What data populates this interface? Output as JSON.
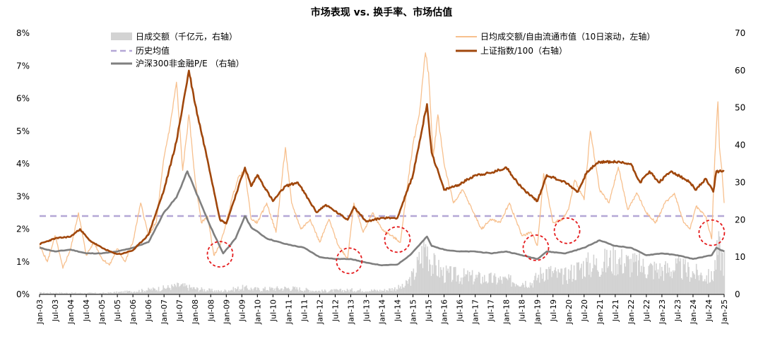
{
  "chart_data": {
    "type": "line",
    "title": "市场表现 vs. 换手率、市场估值",
    "left_axis": {
      "ticks": [
        "0%",
        "1%",
        "2%",
        "3%",
        "4%",
        "5%",
        "6%",
        "7%",
        "8%"
      ],
      "ylim": [
        0,
        8
      ]
    },
    "right_axis": {
      "ticks": [
        "0",
        "10",
        "20",
        "30",
        "40",
        "50",
        "60",
        "70"
      ],
      "ylim": [
        0,
        70
      ]
    },
    "x_ticks": [
      "Jan-03",
      "Jul-03",
      "Jan-04",
      "Jul-04",
      "Jan-05",
      "Jul-05",
      "Jan-06",
      "Jul-06",
      "Jan-07",
      "Jul-07",
      "Jan-08",
      "Jul-08",
      "Jan-09",
      "Jul-09",
      "Jan-10",
      "Jul-10",
      "Jan-11",
      "Jul-11",
      "Jan-12",
      "Jul-12",
      "Jan-13",
      "Jul-13",
      "Jan-14",
      "Jul-14",
      "Jan-15",
      "Jul-15",
      "Jan-16",
      "Jul-16",
      "Jan-17",
      "Jul-17",
      "Jan-18",
      "Jul-18",
      "Jan-19",
      "Jul-19",
      "Jan-20",
      "Jul-20",
      "Jan-21",
      "Jul-21",
      "Jan-22",
      "Jul-22",
      "Jan-23",
      "Jul-23",
      "Jan-24",
      "Jul-24",
      "Jan-25"
    ],
    "x_range": [
      2003.0,
      2025.0
    ],
    "legend": {
      "volume": "日成交额（千亿元，右轴）",
      "hist_avg": "历史均值",
      "pe": "沪深300非金融P/E （右轴）",
      "turnover": "日均成交额/自由流通市值（10日滚动，左轴）",
      "index": "上证指数/100（右轴）"
    },
    "colors": {
      "volume": "#d3d3d3",
      "hist_avg": "#b4a7d6",
      "pe": "#7f7f7f",
      "turnover": "#f7c08e",
      "index": "#a0470c",
      "circle": "#e41a1c"
    },
    "hist_avg_value": 2.4,
    "series": [
      {
        "key": "index",
        "name": "上证指数/100（右轴）",
        "axis": "right",
        "points": [
          [
            2003.0,
            13.5
          ],
          [
            2003.5,
            15.0
          ],
          [
            2004.0,
            15.5
          ],
          [
            2004.3,
            17.5
          ],
          [
            2004.6,
            14.5
          ],
          [
            2005.0,
            12.5
          ],
          [
            2005.4,
            11.0
          ],
          [
            2005.6,
            10.8
          ],
          [
            2006.0,
            11.8
          ],
          [
            2006.5,
            16.0
          ],
          [
            2007.0,
            28.0
          ],
          [
            2007.4,
            41.0
          ],
          [
            2007.8,
            60.0
          ],
          [
            2008.0,
            51.0
          ],
          [
            2008.4,
            36.0
          ],
          [
            2008.8,
            20.0
          ],
          [
            2009.0,
            19.0
          ],
          [
            2009.6,
            34.0
          ],
          [
            2009.8,
            29.0
          ],
          [
            2010.0,
            32.0
          ],
          [
            2010.5,
            25.0
          ],
          [
            2010.9,
            29.0
          ],
          [
            2011.3,
            30.0
          ],
          [
            2011.9,
            22.0
          ],
          [
            2012.2,
            24.0
          ],
          [
            2012.9,
            20.0
          ],
          [
            2013.1,
            23.5
          ],
          [
            2013.5,
            19.5
          ],
          [
            2014.0,
            20.5
          ],
          [
            2014.5,
            20.5
          ],
          [
            2015.0,
            32.0
          ],
          [
            2015.45,
            51.0
          ],
          [
            2015.6,
            38.0
          ],
          [
            2016.0,
            28.0
          ],
          [
            2016.5,
            29.5
          ],
          [
            2017.0,
            32.0
          ],
          [
            2017.5,
            32.5
          ],
          [
            2018.0,
            34.0
          ],
          [
            2018.5,
            28.5
          ],
          [
            2019.0,
            25.0
          ],
          [
            2019.3,
            32.0
          ],
          [
            2019.9,
            30.0
          ],
          [
            2020.3,
            27.5
          ],
          [
            2020.6,
            33.0
          ],
          [
            2021.0,
            35.5
          ],
          [
            2021.5,
            35.5
          ],
          [
            2022.0,
            35.0
          ],
          [
            2022.3,
            30.0
          ],
          [
            2022.6,
            33.0
          ],
          [
            2022.9,
            30.0
          ],
          [
            2023.3,
            33.0
          ],
          [
            2023.9,
            30.0
          ],
          [
            2024.1,
            28.0
          ],
          [
            2024.4,
            31.0
          ],
          [
            2024.65,
            27.5
          ],
          [
            2024.75,
            33.0
          ],
          [
            2025.0,
            33.0
          ]
        ]
      },
      {
        "key": "pe",
        "name": "沪深300非金融P/E （右轴）",
        "axis": "right",
        "points": [
          [
            2003.0,
            12.5
          ],
          [
            2003.5,
            11.5
          ],
          [
            2004.0,
            12.0
          ],
          [
            2004.5,
            11.0
          ],
          [
            2005.0,
            11.0
          ],
          [
            2005.5,
            11.5
          ],
          [
            2006.0,
            12.5
          ],
          [
            2006.5,
            14.0
          ],
          [
            2007.0,
            22.0
          ],
          [
            2007.4,
            26.0
          ],
          [
            2007.75,
            33.0
          ],
          [
            2008.0,
            28.0
          ],
          [
            2008.5,
            18.0
          ],
          [
            2008.9,
            11.0
          ],
          [
            2009.3,
            15.0
          ],
          [
            2009.6,
            21.0
          ],
          [
            2009.8,
            18.0
          ],
          [
            2010.3,
            15.0
          ],
          [
            2010.9,
            13.5
          ],
          [
            2011.5,
            12.5
          ],
          [
            2012.0,
            10.0
          ],
          [
            2012.5,
            9.5
          ],
          [
            2013.0,
            9.5
          ],
          [
            2013.5,
            8.5
          ],
          [
            2014.0,
            7.8
          ],
          [
            2014.5,
            8.0
          ],
          [
            2014.9,
            10.5
          ],
          [
            2015.45,
            15.5
          ],
          [
            2015.6,
            13.0
          ],
          [
            2016.0,
            12.0
          ],
          [
            2016.5,
            11.5
          ],
          [
            2017.0,
            11.5
          ],
          [
            2017.5,
            11.0
          ],
          [
            2018.0,
            11.5
          ],
          [
            2018.5,
            10.5
          ],
          [
            2019.0,
            9.5
          ],
          [
            2019.3,
            11.5
          ],
          [
            2019.9,
            11.0
          ],
          [
            2020.5,
            12.5
          ],
          [
            2021.0,
            14.5
          ],
          [
            2021.5,
            13.0
          ],
          [
            2022.0,
            12.5
          ],
          [
            2022.5,
            10.5
          ],
          [
            2023.0,
            11.0
          ],
          [
            2023.5,
            10.5
          ],
          [
            2024.0,
            9.5
          ],
          [
            2024.6,
            10.5
          ],
          [
            2024.75,
            12.5
          ],
          [
            2025.0,
            11.5
          ]
        ]
      },
      {
        "key": "turnover",
        "name": "日均成交额/自由流通市值（10日滚动，左轴）",
        "axis": "left",
        "points": [
          [
            2003.0,
            1.5
          ],
          [
            2003.25,
            1.0
          ],
          [
            2003.5,
            1.8
          ],
          [
            2003.75,
            0.8
          ],
          [
            2004.0,
            1.4
          ],
          [
            2004.25,
            2.5
          ],
          [
            2004.5,
            1.2
          ],
          [
            2004.75,
            1.6
          ],
          [
            2005.0,
            1.1
          ],
          [
            2005.25,
            0.9
          ],
          [
            2005.5,
            1.4
          ],
          [
            2005.75,
            1.0
          ],
          [
            2006.0,
            1.6
          ],
          [
            2006.25,
            2.8
          ],
          [
            2006.5,
            1.8
          ],
          [
            2006.75,
            2.2
          ],
          [
            2007.0,
            4.2
          ],
          [
            2007.2,
            5.2
          ],
          [
            2007.4,
            6.5
          ],
          [
            2007.6,
            3.8
          ],
          [
            2007.8,
            5.5
          ],
          [
            2008.0,
            3.5
          ],
          [
            2008.2,
            2.2
          ],
          [
            2008.4,
            2.4
          ],
          [
            2008.6,
            1.2
          ],
          [
            2008.8,
            1.5
          ],
          [
            2009.0,
            2.2
          ],
          [
            2009.2,
            3.0
          ],
          [
            2009.4,
            3.6
          ],
          [
            2009.6,
            3.8
          ],
          [
            2009.8,
            2.3
          ],
          [
            2010.0,
            2.2
          ],
          [
            2010.3,
            2.8
          ],
          [
            2010.6,
            1.9
          ],
          [
            2010.9,
            4.5
          ],
          [
            2011.1,
            2.8
          ],
          [
            2011.4,
            2.0
          ],
          [
            2011.7,
            2.3
          ],
          [
            2012.0,
            1.6
          ],
          [
            2012.3,
            2.3
          ],
          [
            2012.6,
            1.5
          ],
          [
            2012.9,
            1.1
          ],
          [
            2013.1,
            2.8
          ],
          [
            2013.4,
            1.9
          ],
          [
            2013.7,
            2.5
          ],
          [
            2014.0,
            2.0
          ],
          [
            2014.3,
            1.8
          ],
          [
            2014.6,
            1.6
          ],
          [
            2014.8,
            3.2
          ],
          [
            2015.0,
            4.6
          ],
          [
            2015.2,
            5.5
          ],
          [
            2015.4,
            7.4
          ],
          [
            2015.5,
            6.8
          ],
          [
            2015.65,
            4.2
          ],
          [
            2015.8,
            5.5
          ],
          [
            2016.0,
            4.0
          ],
          [
            2016.3,
            2.8
          ],
          [
            2016.6,
            3.2
          ],
          [
            2016.9,
            2.6
          ],
          [
            2017.2,
            2.0
          ],
          [
            2017.5,
            2.3
          ],
          [
            2017.8,
            2.2
          ],
          [
            2018.1,
            2.8
          ],
          [
            2018.5,
            1.8
          ],
          [
            2018.8,
            1.9
          ],
          [
            2019.0,
            1.5
          ],
          [
            2019.2,
            3.7
          ],
          [
            2019.5,
            2.2
          ],
          [
            2019.8,
            2.3
          ],
          [
            2020.0,
            2.6
          ],
          [
            2020.2,
            3.5
          ],
          [
            2020.5,
            2.9
          ],
          [
            2020.7,
            5.0
          ],
          [
            2021.0,
            3.2
          ],
          [
            2021.3,
            2.8
          ],
          [
            2021.6,
            3.9
          ],
          [
            2021.9,
            2.6
          ],
          [
            2022.2,
            3.1
          ],
          [
            2022.5,
            2.5
          ],
          [
            2022.8,
            2.2
          ],
          [
            2023.1,
            2.8
          ],
          [
            2023.4,
            3.1
          ],
          [
            2023.7,
            2.2
          ],
          [
            2023.9,
            2.0
          ],
          [
            2024.1,
            2.7
          ],
          [
            2024.4,
            2.4
          ],
          [
            2024.6,
            1.7
          ],
          [
            2024.7,
            4.2
          ],
          [
            2024.8,
            5.9
          ],
          [
            2024.85,
            4.5
          ],
          [
            2024.93,
            3.8
          ],
          [
            2025.0,
            2.8
          ]
        ]
      }
    ],
    "volume_envelope": [
      [
        2003.0,
        0.6
      ],
      [
        2005.0,
        0.5
      ],
      [
        2006.0,
        1.2
      ],
      [
        2007.0,
        2.5
      ],
      [
        2007.5,
        3.5
      ],
      [
        2008.0,
        2.2
      ],
      [
        2008.8,
        1.2
      ],
      [
        2009.5,
        2.6
      ],
      [
        2010.0,
        2.0
      ],
      [
        2011.0,
        2.5
      ],
      [
        2012.0,
        1.3
      ],
      [
        2013.0,
        1.7
      ],
      [
        2014.0,
        1.5
      ],
      [
        2014.7,
        3.0
      ],
      [
        2015.0,
        7.5
      ],
      [
        2015.4,
        19.5
      ],
      [
        2015.6,
        12.0
      ],
      [
        2016.0,
        8.0
      ],
      [
        2017.0,
        6.5
      ],
      [
        2018.0,
        5.5
      ],
      [
        2018.8,
        4.5
      ],
      [
        2019.2,
        9.5
      ],
      [
        2019.8,
        7.0
      ],
      [
        2020.5,
        11.5
      ],
      [
        2021.0,
        12.0
      ],
      [
        2021.5,
        14.0
      ],
      [
        2022.0,
        12.0
      ],
      [
        2022.5,
        10.5
      ],
      [
        2023.0,
        9.5
      ],
      [
        2023.5,
        10.5
      ],
      [
        2024.0,
        8.5
      ],
      [
        2024.6,
        6.5
      ],
      [
        2024.8,
        18.0
      ],
      [
        2025.0,
        13.0
      ]
    ],
    "circles": [
      [
        2008.8,
        1.23
      ],
      [
        2012.95,
        1.03
      ],
      [
        2014.5,
        1.68
      ],
      [
        2018.95,
        1.43
      ],
      [
        2019.95,
        1.95
      ],
      [
        2024.6,
        1.89
      ]
    ]
  }
}
